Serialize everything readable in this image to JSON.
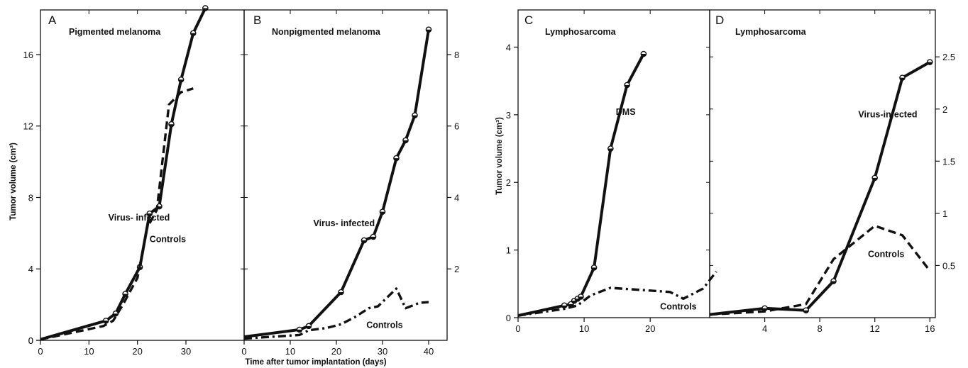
{
  "figure": {
    "xlabel": "Time after tumor implantation (days)",
    "ylabel_left": "Tumor volume (cm³)",
    "ylabel_right": "Tumor volume (cm³)"
  },
  "chart_data": [
    {
      "type": "line",
      "panel": "A",
      "title": "Pigmented melanoma",
      "xlim": [
        0,
        42
      ],
      "ylim": [
        0,
        18.5
      ],
      "xticks": [
        0,
        10,
        20,
        30
      ],
      "yticks": [
        0,
        4,
        8,
        12,
        16
      ],
      "series": [
        {
          "name": "Virus- infected",
          "style": "solid",
          "x": [
            0,
            13.5,
            15.5,
            17.5,
            20.5,
            22.5,
            24.5,
            27,
            29,
            31.5,
            34
          ],
          "y": [
            0.05,
            1.1,
            1.5,
            2.6,
            4.1,
            7.1,
            7.5,
            12.1,
            14.6,
            17.2,
            18.6
          ]
        },
        {
          "name": "Controls",
          "style": "dashed",
          "x": [
            0,
            13,
            15,
            17,
            20,
            22,
            24,
            26.5,
            29,
            31.5
          ],
          "y": [
            0.05,
            0.8,
            1.1,
            2.0,
            3.5,
            6.3,
            7.3,
            13.2,
            13.9,
            14.1
          ]
        }
      ],
      "annotations": [
        {
          "text": "Virus- infected",
          "x": 14,
          "y": 6.7
        },
        {
          "text": "Controls",
          "x": 22.5,
          "y": 5.5
        }
      ]
    },
    {
      "type": "line",
      "panel": "B",
      "title": "Nonpigmented melanoma",
      "xlim": [
        0,
        44
      ],
      "ylim": [
        0,
        9.25
      ],
      "xticks": [
        0,
        10,
        20,
        30,
        40
      ],
      "yticks": [
        2,
        4,
        6,
        8
      ],
      "series": [
        {
          "name": "Virus- infected",
          "style": "solid",
          "x": [
            0,
            12,
            14,
            21,
            26,
            28,
            30,
            33,
            35,
            37,
            40
          ],
          "y": [
            0.1,
            0.3,
            0.4,
            1.35,
            2.8,
            2.9,
            3.6,
            5.1,
            5.6,
            6.3,
            8.7
          ]
        },
        {
          "name": "Controls",
          "style": "dashdot",
          "x": [
            0,
            12,
            14,
            18,
            21,
            24,
            27,
            29,
            31,
            33,
            35,
            38,
            40
          ],
          "y": [
            0.05,
            0.15,
            0.28,
            0.35,
            0.45,
            0.65,
            0.9,
            0.95,
            1.2,
            1.45,
            0.9,
            1.05,
            1.07
          ]
        }
      ],
      "annotations": [
        {
          "text": "Virus- infected",
          "x": 15,
          "y": 3.2
        },
        {
          "text": "Controls",
          "x": 26.5,
          "y": 0.35
        }
      ]
    },
    {
      "type": "line",
      "panel": "C",
      "title": "Lymphosarcoma",
      "xlim": [
        0,
        29
      ],
      "ylim": [
        0,
        4.55
      ],
      "xticks": [
        0,
        10,
        20
      ],
      "yticks": [
        1,
        2,
        3,
        4
      ],
      "series": [
        {
          "name": "DMS",
          "style": "solid",
          "x": [
            0,
            7,
            8,
            8.5,
            9,
            9.5,
            11.5,
            14,
            16.5,
            19
          ],
          "y": [
            0.03,
            0.18,
            0.2,
            0.25,
            0.28,
            0.31,
            0.74,
            2.5,
            3.44,
            3.9
          ]
        },
        {
          "name": "Controls",
          "style": "dashdot",
          "x": [
            0,
            7,
            9,
            11,
            14,
            17,
            20,
            23,
            25,
            28,
            30
          ],
          "y": [
            0.03,
            0.13,
            0.18,
            0.33,
            0.44,
            0.42,
            0.4,
            0.38,
            0.28,
            0.43,
            0.68
          ]
        }
      ],
      "annotations": [
        {
          "text": "DMS",
          "x": 14.8,
          "y": 3.0
        },
        {
          "text": "Controls",
          "x": 21.5,
          "y": 0.12
        }
      ]
    },
    {
      "type": "line",
      "panel": "D",
      "title": "Lymphosarcoma",
      "xlim": [
        0,
        16.4
      ],
      "ylim": [
        0,
        2.95
      ],
      "xticks": [
        4,
        8,
        12,
        16
      ],
      "yticks": [
        0.5,
        1.0,
        1.5,
        2.0,
        2.5
      ],
      "series": [
        {
          "name": "Virus-infected",
          "style": "solid",
          "x": [
            0,
            4,
            7,
            9,
            12,
            14,
            16
          ],
          "y": [
            0.03,
            0.09,
            0.07,
            0.35,
            1.34,
            2.3,
            2.45
          ]
        },
        {
          "name": "Controls",
          "style": "dashed",
          "x": [
            0,
            4,
            7,
            9,
            12,
            14,
            16
          ],
          "y": [
            0.03,
            0.06,
            0.13,
            0.56,
            0.88,
            0.79,
            0.45
          ]
        }
      ],
      "annotations": [
        {
          "text": "Virus-infected",
          "x": 10.8,
          "y": 1.92
        },
        {
          "text": "Controls",
          "x": 11.5,
          "y": 0.58
        }
      ]
    }
  ]
}
